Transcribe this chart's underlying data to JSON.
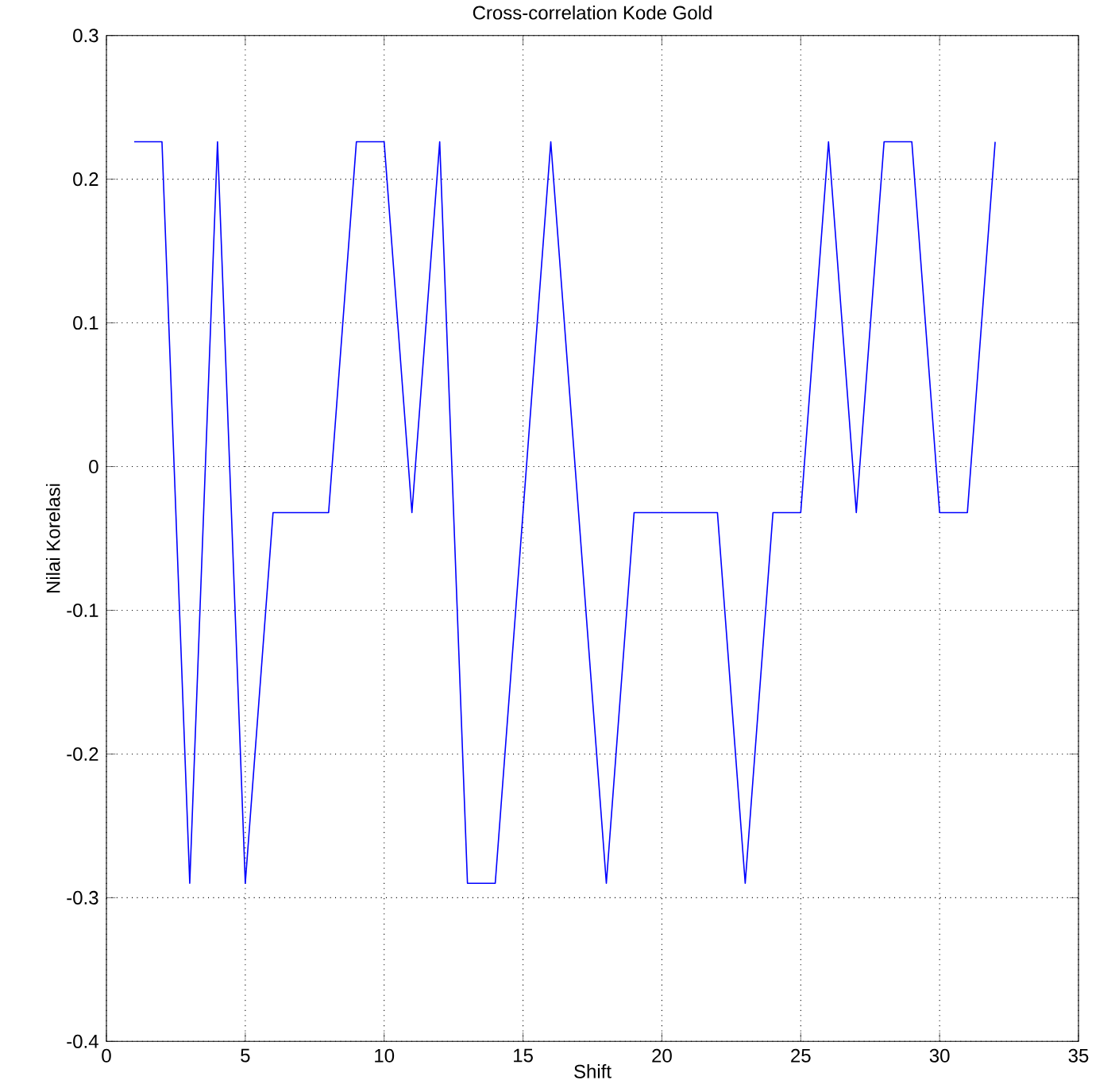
{
  "chart_data": {
    "type": "line",
    "title": "Cross-correlation Kode Gold",
    "xlabel": "Shift",
    "ylabel": "Nilai Korelasi",
    "x": [
      1,
      2,
      3,
      4,
      5,
      6,
      7,
      8,
      9,
      10,
      11,
      12,
      13,
      14,
      15,
      16,
      17,
      18,
      19,
      20,
      21,
      22,
      23,
      24,
      25,
      26,
      27,
      28,
      29,
      30,
      31,
      32
    ],
    "series": [
      {
        "color": "#0000ff",
        "values": [
          0.226,
          0.226,
          -0.29,
          0.226,
          -0.29,
          -0.032,
          -0.032,
          -0.032,
          0.226,
          0.226,
          -0.032,
          0.226,
          -0.29,
          -0.29,
          -0.032,
          0.226,
          -0.032,
          -0.29,
          -0.032,
          -0.032,
          -0.032,
          -0.032,
          -0.29,
          -0.032,
          -0.032,
          0.226,
          -0.032,
          0.226,
          0.226,
          -0.032,
          -0.032,
          0.226
        ]
      }
    ],
    "xlim": [
      0,
      35
    ],
    "ylim": [
      -0.4,
      0.3
    ],
    "xticks": [
      0,
      5,
      10,
      15,
      20,
      25,
      30,
      35
    ],
    "yticks": [
      -0.4,
      -0.3,
      -0.2,
      -0.1,
      0,
      0.1,
      0.2,
      0.3
    ],
    "grid": true,
    "line_style": "solid",
    "marker": "none"
  }
}
